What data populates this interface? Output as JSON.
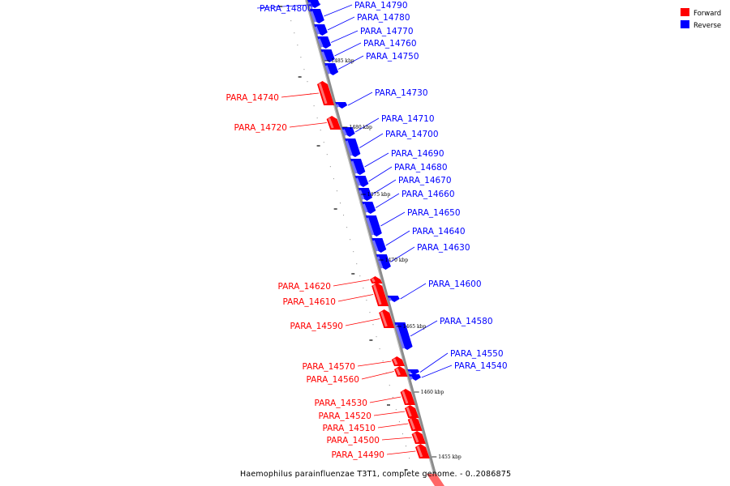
{
  "legend": {
    "forward_label": "Forward",
    "reverse_label": "Reverse",
    "forward_color": "#ff0000",
    "reverse_color": "#0000ff"
  },
  "caption": "Haemophilus parainfluenzae T3T1, complete genome. - 0..2086875",
  "ticks": [
    "1485 kbp",
    "1480 kbp",
    "1475 kbp",
    "1470 kbp",
    "1465 kbp",
    "1460 kbp",
    "1455 kbp"
  ],
  "genes": [
    {
      "name": "PARA_14800",
      "strand": "reverse"
    },
    {
      "name": "PARA_14790",
      "strand": "reverse"
    },
    {
      "name": "PARA_14780",
      "strand": "reverse"
    },
    {
      "name": "PARA_14770",
      "strand": "reverse"
    },
    {
      "name": "PARA_14760",
      "strand": "reverse"
    },
    {
      "name": "PARA_14750",
      "strand": "reverse"
    },
    {
      "name": "PARA_14740",
      "strand": "forward"
    },
    {
      "name": "PARA_14730",
      "strand": "reverse"
    },
    {
      "name": "PARA_14720",
      "strand": "forward"
    },
    {
      "name": "PARA_14710",
      "strand": "reverse"
    },
    {
      "name": "PARA_14700",
      "strand": "reverse"
    },
    {
      "name": "PARA_14690",
      "strand": "reverse"
    },
    {
      "name": "PARA_14680",
      "strand": "reverse"
    },
    {
      "name": "PARA_14670",
      "strand": "reverse"
    },
    {
      "name": "PARA_14660",
      "strand": "reverse"
    },
    {
      "name": "PARA_14650",
      "strand": "reverse"
    },
    {
      "name": "PARA_14640",
      "strand": "reverse"
    },
    {
      "name": "PARA_14630",
      "strand": "reverse"
    },
    {
      "name": "PARA_14620",
      "strand": "forward"
    },
    {
      "name": "PARA_14610",
      "strand": "forward"
    },
    {
      "name": "PARA_14600",
      "strand": "reverse"
    },
    {
      "name": "PARA_14590",
      "strand": "forward"
    },
    {
      "name": "PARA_14580",
      "strand": "reverse"
    },
    {
      "name": "PARA_14570",
      "strand": "forward"
    },
    {
      "name": "PARA_14560",
      "strand": "forward"
    },
    {
      "name": "PARA_14550",
      "strand": "reverse"
    },
    {
      "name": "PARA_14540",
      "strand": "reverse"
    },
    {
      "name": "PARA_14530",
      "strand": "forward"
    },
    {
      "name": "PARA_14520",
      "strand": "forward"
    },
    {
      "name": "PARA_14510",
      "strand": "forward"
    },
    {
      "name": "PARA_14500",
      "strand": "forward"
    },
    {
      "name": "PARA_14490",
      "strand": "forward"
    }
  ]
}
